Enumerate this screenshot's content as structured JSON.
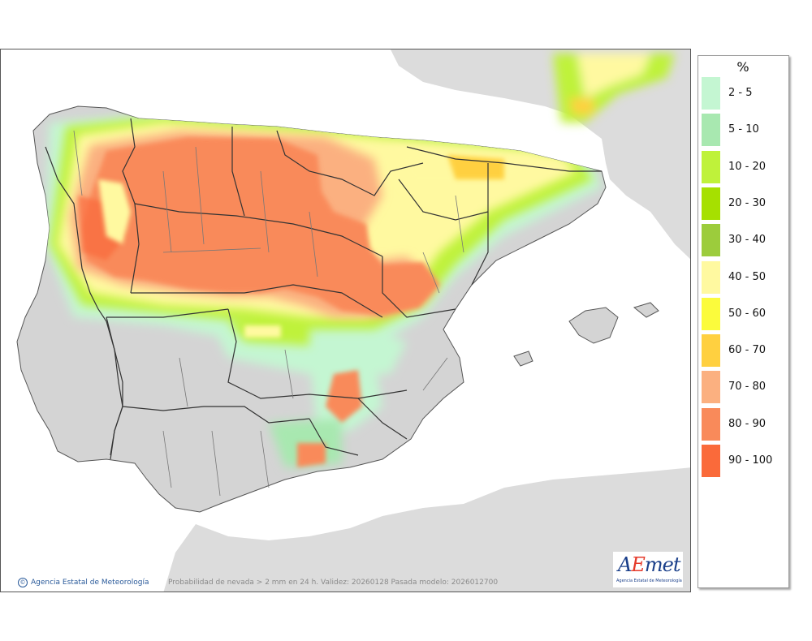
{
  "legend": {
    "title": "%",
    "items": [
      {
        "label": "2 - 5",
        "color": "#c4f6d2"
      },
      {
        "label": "5 - 10",
        "color": "#a8e8b0"
      },
      {
        "label": "10 - 20",
        "color": "#bff23a"
      },
      {
        "label": "20 - 30",
        "color": "#a6e000"
      },
      {
        "label": "30 - 40",
        "color": "#9ccc3c"
      },
      {
        "label": "40 - 50",
        "color": "#fff9a0"
      },
      {
        "label": "50 - 60",
        "color": "#fbfb3c"
      },
      {
        "label": "60 - 70",
        "color": "#ffd040"
      },
      {
        "label": "70 - 80",
        "color": "#fbb080"
      },
      {
        "label": "80 - 90",
        "color": "#f98a5a"
      },
      {
        "label": "90 - 100",
        "color": "#fa6a3a"
      }
    ]
  },
  "footer": {
    "agency": "Agencia Estatal de Meteorología",
    "caption": "Probabilidad de nevada > 2 mm en 24 h. Validez: 20260128 Pasada modelo: 2026012700"
  },
  "logo": {
    "sub": "Agencia Estatal de Meteorología"
  },
  "map": {
    "land_color": "#dcdcdc",
    "sea_color": "#ffffff",
    "border_color": "#333333"
  }
}
